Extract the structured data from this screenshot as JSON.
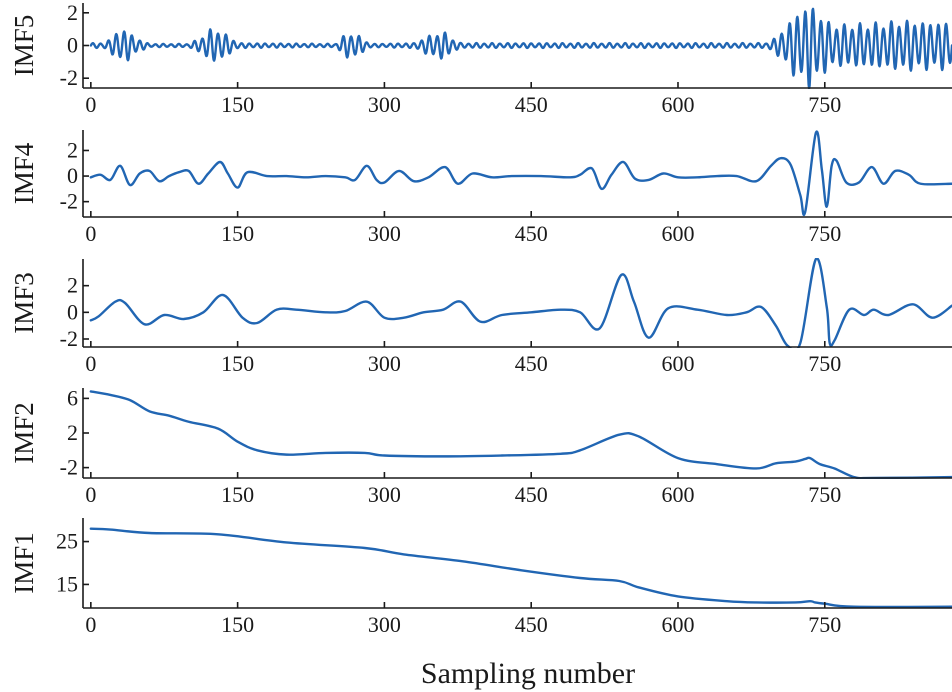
{
  "colors": {
    "line": "#2166b3",
    "axis": "#1a1a1a"
  },
  "chart_data": {
    "type": "line",
    "title": "",
    "xlabel": "Sampling number",
    "x_ticks": [
      "0",
      "150",
      "300",
      "450",
      "600",
      "750"
    ],
    "x_tick_values": [
      0,
      150,
      300,
      450,
      600,
      750
    ],
    "xlim": [
      -8,
      880
    ],
    "panels": [
      {
        "name": "IMF5",
        "ylabel": "IMF5",
        "ylim": [
          -2.6,
          2.6
        ],
        "y_ticks": [
          "2",
          "0",
          "-2"
        ],
        "y_tick_values": [
          2,
          0,
          -2
        ],
        "series": [
          {
            "name": "IMF5",
            "kind": "oscillation",
            "period": 8,
            "segments": [
              [
                0,
                0.15
              ],
              [
                12,
                0.15
              ],
              [
                20,
                0.4
              ],
              [
                28,
                1.0
              ],
              [
                36,
                1.0
              ],
              [
                44,
                0.6
              ],
              [
                52,
                0.3
              ],
              [
                60,
                0.1
              ],
              [
                100,
                0.1
              ],
              [
                110,
                0.4
              ],
              [
                122,
                1.0
              ],
              [
                132,
                1.0
              ],
              [
                142,
                0.5
              ],
              [
                152,
                0.15
              ],
              [
                250,
                0.1
              ],
              [
                255,
                0.4
              ],
              [
                262,
                0.8
              ],
              [
                272,
                0.7
              ],
              [
                280,
                0.3
              ],
              [
                288,
                0.1
              ],
              [
                330,
                0.15
              ],
              [
                345,
                0.6
              ],
              [
                360,
                0.9
              ],
              [
                368,
                0.5
              ],
              [
                378,
                0.15
              ],
              [
                690,
                0.15
              ],
              [
                700,
                0.5
              ],
              [
                710,
                1.2
              ],
              [
                720,
                2.0
              ],
              [
                728,
                2.4
              ],
              [
                736,
                2.7
              ],
              [
                744,
                2.0
              ],
              [
                752,
                1.6
              ],
              [
                760,
                1.3
              ],
              [
                800,
                1.4
              ],
              [
                835,
                1.6
              ],
              [
                850,
                1.5
              ],
              [
                880,
                1.5
              ]
            ],
            "values_summary": "quiet near 0 with bursts of about ±1 around samples 30, 130, 265, 360; strong oscillation up to about ±2.8 after sample 700"
          }
        ]
      },
      {
        "name": "IMF4",
        "ylabel": "IMF4",
        "ylim": [
          -3.2,
          3.6
        ],
        "y_ticks": [
          "2",
          "0",
          "-2"
        ],
        "y_tick_values": [
          2,
          0,
          -2
        ],
        "series": [
          {
            "name": "IMF4",
            "x": [
              0,
              10,
              20,
              30,
              40,
              50,
              60,
              70,
              80,
              90,
              100,
              110,
              120,
              132,
              140,
              150,
              160,
              180,
              200,
              220,
              240,
              260,
              270,
              282,
              292,
              300,
              315,
              330,
              345,
              362,
              375,
              390,
              410,
              430,
              460,
              490,
              500,
              512,
              522,
              532,
              544,
              556,
              570,
              585,
              600,
              620,
              640,
              660,
              680,
              695,
              705,
              715,
              725,
              730,
              741,
              747,
              752,
              757,
              762,
              772,
              785,
              798,
              810,
              822,
              836,
              848,
              880
            ],
            "values": [
              -0.1,
              0.1,
              -0.3,
              0.8,
              -0.7,
              0.2,
              0.4,
              -0.4,
              0.0,
              0.3,
              0.4,
              -0.6,
              0.2,
              1.1,
              0.2,
              -0.9,
              0.3,
              0.0,
              0.0,
              -0.1,
              0.0,
              -0.1,
              -0.3,
              0.8,
              -0.3,
              -0.5,
              0.4,
              -0.4,
              -0.1,
              0.7,
              -0.6,
              0.2,
              -0.1,
              0.0,
              0.0,
              -0.1,
              0.1,
              0.6,
              -1.0,
              0.1,
              1.1,
              -0.2,
              -0.3,
              0.2,
              -0.1,
              -0.1,
              0.0,
              0.0,
              -0.4,
              0.8,
              1.4,
              0.9,
              -1.5,
              -2.8,
              3.4,
              0.5,
              -2.4,
              0.8,
              1.2,
              -0.5,
              -0.5,
              0.7,
              -0.6,
              0.4,
              0.1,
              -0.6,
              -0.6
            ]
          }
        ]
      },
      {
        "name": "IMF3",
        "ylabel": "IMF3",
        "ylim": [
          -2.6,
          4.0
        ],
        "y_ticks": [
          "2",
          "0",
          "-2"
        ],
        "y_tick_values": [
          2,
          0,
          -2
        ],
        "series": [
          {
            "name": "IMF3",
            "x": [
              0,
              8,
              25,
              35,
              55,
              75,
              95,
              115,
              135,
              155,
              170,
              190,
              210,
              240,
              260,
              282,
              300,
              320,
              340,
              360,
              378,
              398,
              420,
              450,
              480,
              500,
              520,
              542,
              555,
              570,
              590,
              620,
              650,
              670,
              685,
              700,
              712,
              725,
              741,
              752,
              755,
              760,
              775,
              790,
              800,
              815,
              840,
              860,
              880
            ],
            "values": [
              -0.6,
              -0.3,
              0.8,
              0.7,
              -0.9,
              -0.2,
              -0.5,
              0.0,
              1.3,
              -0.4,
              -0.8,
              0.2,
              0.2,
              0.0,
              0.1,
              0.8,
              -0.4,
              -0.4,
              0.0,
              0.2,
              0.8,
              -0.7,
              -0.2,
              0.0,
              0.2,
              0.0,
              -1.2,
              2.8,
              0.8,
              -1.9,
              0.3,
              0.2,
              -0.2,
              0.0,
              0.4,
              -1.0,
              -2.5,
              -2.3,
              4.0,
              0.4,
              -2.3,
              -2.1,
              0.2,
              -0.2,
              0.2,
              -0.2,
              0.6,
              -0.4,
              0.5
            ]
          }
        ]
      },
      {
        "name": "IMF2",
        "ylabel": "IMF2",
        "ylim": [
          -3.2,
          7.2
        ],
        "y_ticks": [
          "6",
          "2",
          "-2"
        ],
        "y_tick_values": [
          6,
          2,
          -2
        ],
        "series": [
          {
            "name": "IMF2",
            "x": [
              0,
              20,
              40,
              60,
              80,
              100,
              130,
              150,
              170,
              200,
              240,
              280,
              300,
              360,
              420,
              480,
              500,
              540,
              560,
              600,
              640,
              680,
              700,
              720,
              730,
              735,
              745,
              760,
              780,
              800,
              880
            ],
            "values": [
              6.8,
              6.4,
              5.8,
              4.5,
              4.0,
              3.3,
              2.5,
              1.0,
              0.0,
              -0.5,
              -0.3,
              -0.3,
              -0.6,
              -0.7,
              -0.6,
              -0.4,
              0.0,
              1.8,
              1.6,
              -0.9,
              -1.6,
              -2.1,
              -1.5,
              -1.3,
              -1.0,
              -0.9,
              -1.6,
              -2.1,
              -3.1,
              -3.2,
              -3.1
            ]
          }
        ]
      },
      {
        "name": "IMF1",
        "ylabel": "IMF1",
        "ylim": [
          9.5,
          30.5
        ],
        "y_ticks": [
          "25",
          "15"
        ],
        "y_tick_values": [
          25,
          15
        ],
        "series": [
          {
            "name": "IMF1",
            "x": [
              0,
              20,
              60,
              130,
              200,
              280,
              320,
              380,
              440,
              500,
              540,
              560,
              600,
              650,
              680,
              720,
              735,
              740,
              750,
              780,
              880
            ],
            "values": [
              28.0,
              27.8,
              27.0,
              26.7,
              24.8,
              23.5,
              22.0,
              20.4,
              18.3,
              16.5,
              15.8,
              14.3,
              12.2,
              11.1,
              10.8,
              10.8,
              11.1,
              10.8,
              10.5,
              9.8,
              9.8
            ]
          }
        ]
      }
    ]
  }
}
